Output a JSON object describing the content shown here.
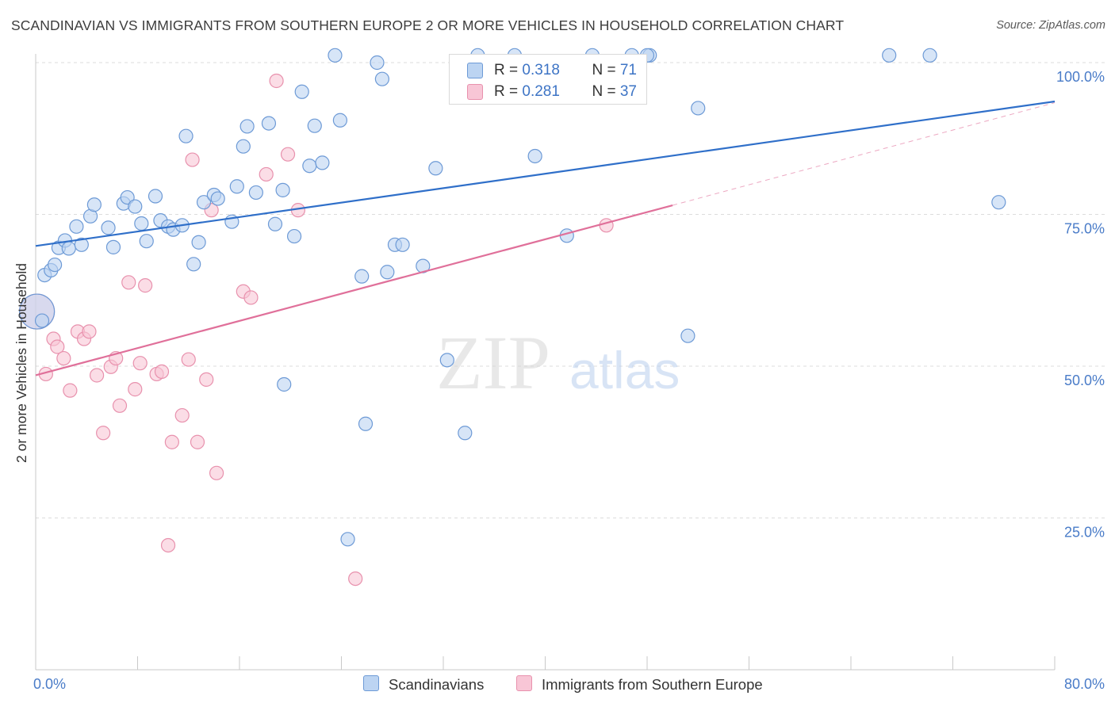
{
  "title": "SCANDINAVIAN VS IMMIGRANTS FROM SOUTHERN EUROPE 2 OR MORE VEHICLES IN HOUSEHOLD CORRELATION CHART",
  "source": "Source: ZipAtlas.com",
  "watermark": {
    "zip": "ZIP",
    "atlas": "atlas"
  },
  "legend": {
    "series1": {
      "r_label": "R = ",
      "r_value": "0.318",
      "n_label": "N = ",
      "n_value": "71"
    },
    "series2": {
      "r_label": "R = ",
      "r_value": "0.281",
      "n_label": "N = ",
      "n_value": "37"
    }
  },
  "colors": {
    "blue_fill": "#bcd4f2",
    "blue_stroke": "#6d9ad6",
    "blue_line": "#2f6fc9",
    "pink_fill": "#f8c6d6",
    "pink_stroke": "#e891ad",
    "pink_line": "#e0709a",
    "tick_text": "#4a7cc8",
    "grid": "#dcdcdc"
  },
  "chart_data": {
    "type": "scatter",
    "title": "SCANDINAVIAN VS IMMIGRANTS FROM SOUTHERN EUROPE 2 OR MORE VEHICLES IN HOUSEHOLD CORRELATION CHART",
    "xlabel": "",
    "ylabel": "2 or more Vehicles in Household",
    "xlim": [
      0,
      80
    ],
    "ylim": [
      0,
      102
    ],
    "x_tick_labels": [
      "0.0%",
      "80.0%"
    ],
    "y_ticks": [
      25,
      50,
      75,
      100
    ],
    "y_tick_labels": [
      "25.0%",
      "50.0%",
      "75.0%",
      "100.0%"
    ],
    "series": [
      {
        "name": "Scandinavians",
        "trend": {
          "x": [
            0,
            80
          ],
          "y": [
            69.8,
            93.6
          ]
        },
        "points": [
          [
            0.1,
            59.0,
            "big"
          ],
          [
            0.7,
            65.0
          ],
          [
            1.2,
            65.8
          ],
          [
            1.5,
            66.7
          ],
          [
            1.8,
            69.5
          ],
          [
            2.3,
            70.7
          ],
          [
            2.6,
            69.4
          ],
          [
            3.2,
            73.0
          ],
          [
            3.6,
            70.0
          ],
          [
            4.3,
            74.7
          ],
          [
            4.6,
            76.6
          ],
          [
            5.7,
            72.8
          ],
          [
            6.1,
            69.6
          ],
          [
            6.9,
            76.8
          ],
          [
            7.2,
            77.8
          ],
          [
            7.8,
            76.3
          ],
          [
            8.3,
            73.5
          ],
          [
            8.7,
            70.6
          ],
          [
            9.4,
            78.0
          ],
          [
            9.8,
            74.0
          ],
          [
            10.4,
            73.0
          ],
          [
            10.8,
            72.5
          ],
          [
            11.5,
            73.2
          ],
          [
            11.8,
            87.9
          ],
          [
            12.4,
            66.8
          ],
          [
            12.8,
            70.4
          ],
          [
            13.2,
            77.0
          ],
          [
            14.0,
            78.2
          ],
          [
            14.3,
            77.6
          ],
          [
            15.4,
            73.8
          ],
          [
            15.8,
            79.6
          ],
          [
            16.3,
            86.2
          ],
          [
            16.6,
            89.5
          ],
          [
            17.3,
            78.6
          ],
          [
            18.3,
            90.0
          ],
          [
            18.8,
            73.4
          ],
          [
            19.4,
            79.0
          ],
          [
            20.3,
            71.4
          ],
          [
            20.9,
            95.2
          ],
          [
            21.5,
            83.0
          ],
          [
            21.9,
            89.6
          ],
          [
            22.5,
            83.5
          ],
          [
            23.5,
            101.2
          ],
          [
            23.9,
            90.5
          ],
          [
            24.5,
            21.5
          ],
          [
            25.6,
            64.8
          ],
          [
            25.9,
            40.5
          ],
          [
            26.8,
            100.0
          ],
          [
            27.2,
            97.3
          ],
          [
            27.6,
            65.5
          ],
          [
            28.2,
            70.0
          ],
          [
            28.8,
            70.0
          ],
          [
            30.4,
            66.5
          ],
          [
            31.4,
            82.6
          ],
          [
            32.3,
            51.0
          ],
          [
            33.7,
            39.0
          ],
          [
            34.7,
            101.2
          ],
          [
            37.6,
            101.2
          ],
          [
            39.2,
            84.6
          ],
          [
            41.7,
            71.5
          ],
          [
            43.7,
            101.2
          ],
          [
            46.8,
            101.2
          ],
          [
            48.2,
            101.2
          ],
          [
            51.2,
            55.0
          ],
          [
            52.0,
            92.5
          ],
          [
            67.0,
            101.2
          ],
          [
            70.2,
            101.2
          ],
          [
            75.6,
            77.0
          ],
          [
            19.5,
            47.0
          ],
          [
            0.5,
            57.5
          ],
          [
            48.0,
            101.2
          ]
        ]
      },
      {
        "name": "Immigrants from Southern Europe",
        "trend": {
          "x": [
            0,
            50
          ],
          "y": [
            48.5,
            76.5
          ]
        },
        "trend_ext": {
          "x": [
            50,
            80
          ],
          "y": [
            76.5,
            93.4
          ]
        },
        "points": [
          [
            0.1,
            59.0,
            "big"
          ],
          [
            0.8,
            48.7
          ],
          [
            1.4,
            54.5
          ],
          [
            1.7,
            53.2
          ],
          [
            2.2,
            51.3
          ],
          [
            2.7,
            46.0
          ],
          [
            3.3,
            55.7
          ],
          [
            3.8,
            54.5
          ],
          [
            4.2,
            55.7
          ],
          [
            4.8,
            48.5
          ],
          [
            5.3,
            39.0
          ],
          [
            5.9,
            49.9
          ],
          [
            6.3,
            51.3
          ],
          [
            6.6,
            43.5
          ],
          [
            7.3,
            63.8
          ],
          [
            7.8,
            46.2
          ],
          [
            8.2,
            50.5
          ],
          [
            8.6,
            63.3
          ],
          [
            9.5,
            48.7
          ],
          [
            9.9,
            49.1
          ],
          [
            10.4,
            20.5
          ],
          [
            10.7,
            37.5
          ],
          [
            11.5,
            41.9
          ],
          [
            12.0,
            51.1
          ],
          [
            12.3,
            84.0
          ],
          [
            12.7,
            37.5
          ],
          [
            13.4,
            47.8
          ],
          [
            13.8,
            75.7
          ],
          [
            14.2,
            32.4
          ],
          [
            16.3,
            62.3
          ],
          [
            16.9,
            61.3
          ],
          [
            18.1,
            81.6
          ],
          [
            18.9,
            97.0
          ],
          [
            19.8,
            84.9
          ],
          [
            20.6,
            75.7
          ],
          [
            25.1,
            15.0
          ],
          [
            44.8,
            73.2
          ]
        ]
      }
    ]
  },
  "bottom_legend": {
    "series1": "Scandinavians",
    "series2": "Immigrants from Southern Europe"
  }
}
